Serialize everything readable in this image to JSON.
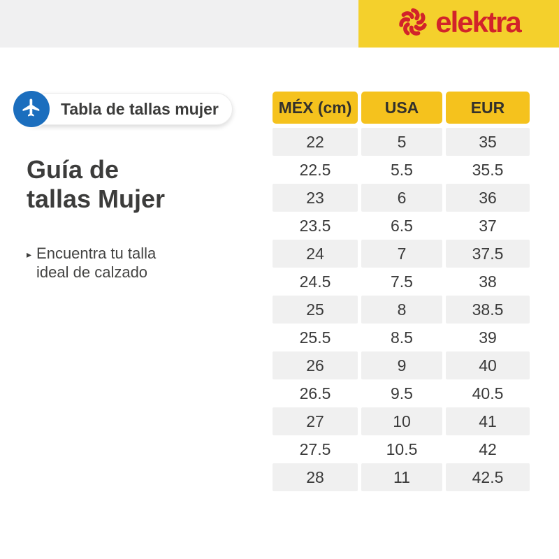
{
  "brand": {
    "wordmark": "elektra",
    "colors": {
      "logo_red": "#D2232A",
      "topbar_yellow": "#F4D02C",
      "topbar_gray": "#F0F0F1"
    }
  },
  "badge": {
    "label": "Tabla de tallas mujer",
    "icon": "airplane-icon",
    "circle_color": "#1B6EBE"
  },
  "heading": {
    "lines": [
      "Guía de",
      "tallas Mujer"
    ]
  },
  "bullet": {
    "marker": "▸",
    "text": "Encuentra tu talla ideal de calzado"
  },
  "chart_data": {
    "type": "table",
    "title": "Guía de tallas Mujer",
    "columns": [
      "MÉX (cm)",
      "USA",
      "EUR"
    ],
    "rows": [
      [
        "22",
        "5",
        "35"
      ],
      [
        "22.5",
        "5.5",
        "35.5"
      ],
      [
        "23",
        "6",
        "36"
      ],
      [
        "23.5",
        "6.5",
        "37"
      ],
      [
        "24",
        "7",
        "37.5"
      ],
      [
        "24.5",
        "7.5",
        "38"
      ],
      [
        "25",
        "8",
        "38.5"
      ],
      [
        "25.5",
        "8.5",
        "39"
      ],
      [
        "26",
        "9",
        "40"
      ],
      [
        "26.5",
        "9.5",
        "40.5"
      ],
      [
        "27",
        "10",
        "41"
      ],
      [
        "27.5",
        "10.5",
        "42"
      ],
      [
        "28",
        "11",
        "42.5"
      ]
    ],
    "layout": {
      "header_bg": "#F5C21D",
      "row_alt_bg": "#F0F0F0",
      "first_row_shaded": true
    }
  }
}
